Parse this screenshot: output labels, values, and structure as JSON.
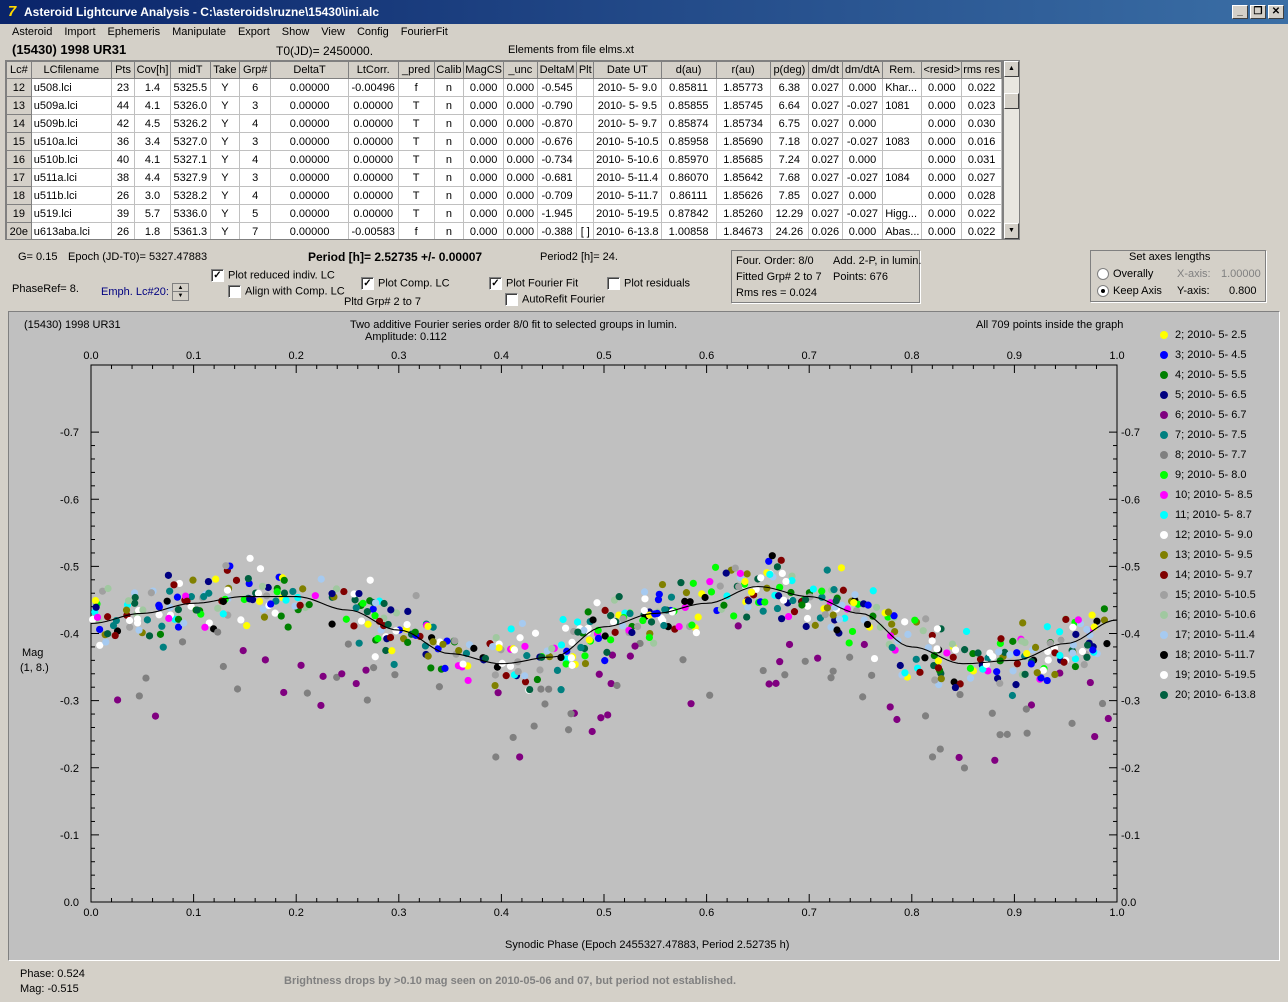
{
  "window": {
    "title": "Asteroid Lightcurve Analysis - C:\\asteroids\\ruzne\\15430\\ini.alc",
    "icon": "app-logo-icon"
  },
  "menu": [
    "Asteroid",
    "Import",
    "Ephemeris",
    "Manipulate",
    "Export",
    "Show",
    "View",
    "Config",
    "FourierFit"
  ],
  "header": {
    "object": "(15430) 1998 UR31",
    "t0": "T0(JD)= 2450000.",
    "elements": "Elements from file elms.xt"
  },
  "table": {
    "columns": [
      "Lc#",
      "LCfilename",
      "Pts",
      "Cov[h]",
      "midT",
      "Take",
      "Grp#",
      "DeltaT",
      "LtCorr.",
      "_pred",
      "Calib",
      "MagCS",
      "_unc",
      "DeltaM",
      "Plt",
      "Date UT",
      "d(au)",
      "r(au)",
      "p(deg)",
      "dm/dt",
      "dm/dtA",
      "Rem.",
      "<resid>",
      "rms res"
    ],
    "rows": [
      [
        "12",
        "u508.lci",
        "23",
        "1.4",
        "5325.5",
        "Y",
        "6",
        "0.00000",
        "-0.00496",
        "f",
        "n",
        "0.000",
        "0.000",
        "-0.545",
        "",
        "2010- 5- 9.0",
        "0.85811",
        "1.85773",
        "6.38",
        "0.027",
        "0.000",
        "Khar...",
        "0.000",
        "0.022"
      ],
      [
        "13",
        "u509a.lci",
        "44",
        "4.1",
        "5326.0",
        "Y",
        "3",
        "0.00000",
        "0.00000",
        "T",
        "n",
        "0.000",
        "0.000",
        "-0.790",
        "",
        "2010- 5- 9.5",
        "0.85855",
        "1.85745",
        "6.64",
        "0.027",
        "-0.027",
        "1081",
        "0.000",
        "0.023"
      ],
      [
        "14",
        "u509b.lci",
        "42",
        "4.5",
        "5326.2",
        "Y",
        "4",
        "0.00000",
        "0.00000",
        "T",
        "n",
        "0.000",
        "0.000",
        "-0.870",
        "",
        "2010- 5- 9.7",
        "0.85874",
        "1.85734",
        "6.75",
        "0.027",
        "0.000",
        "",
        "0.000",
        "0.030"
      ],
      [
        "15",
        "u510a.lci",
        "36",
        "3.4",
        "5327.0",
        "Y",
        "3",
        "0.00000",
        "0.00000",
        "T",
        "n",
        "0.000",
        "0.000",
        "-0.676",
        "",
        "2010- 5-10.5",
        "0.85958",
        "1.85690",
        "7.18",
        "0.027",
        "-0.027",
        "1083",
        "0.000",
        "0.016"
      ],
      [
        "16",
        "u510b.lci",
        "40",
        "4.1",
        "5327.1",
        "Y",
        "4",
        "0.00000",
        "0.00000",
        "T",
        "n",
        "0.000",
        "0.000",
        "-0.734",
        "",
        "2010- 5-10.6",
        "0.85970",
        "1.85685",
        "7.24",
        "0.027",
        "0.000",
        "",
        "0.000",
        "0.031"
      ],
      [
        "17",
        "u511a.lci",
        "38",
        "4.4",
        "5327.9",
        "Y",
        "3",
        "0.00000",
        "0.00000",
        "T",
        "n",
        "0.000",
        "0.000",
        "-0.681",
        "",
        "2010- 5-11.4",
        "0.86070",
        "1.85642",
        "7.68",
        "0.027",
        "-0.027",
        "1084",
        "0.000",
        "0.027"
      ],
      [
        "18",
        "u511b.lci",
        "26",
        "3.0",
        "5328.2",
        "Y",
        "4",
        "0.00000",
        "0.00000",
        "T",
        "n",
        "0.000",
        "0.000",
        "-0.709",
        "",
        "2010- 5-11.7",
        "0.86111",
        "1.85626",
        "7.85",
        "0.027",
        "0.000",
        "",
        "0.000",
        "0.028"
      ],
      [
        "19",
        "u519.lci",
        "39",
        "5.7",
        "5336.0",
        "Y",
        "5",
        "0.00000",
        "0.00000",
        "T",
        "n",
        "0.000",
        "0.000",
        "-1.945",
        "",
        "2010- 5-19.5",
        "0.87842",
        "1.85260",
        "12.29",
        "0.027",
        "-0.027",
        "Higg...",
        "0.000",
        "0.022"
      ],
      [
        "20e",
        "u613aba.lci",
        "26",
        "1.8",
        "5361.3",
        "Y",
        "7",
        "0.00000",
        "-0.00583",
        "f",
        "n",
        "0.000",
        "0.000",
        "-0.388",
        "[ ]",
        "2010- 6-13.8",
        "1.00858",
        "1.84673",
        "24.26",
        "0.026",
        "0.000",
        "Abas...",
        "0.000",
        "0.022"
      ]
    ]
  },
  "params": {
    "g": "G= 0.15",
    "epoch": "Epoch (JD-T0)= 5327.47883",
    "period": "Period [h]= 2.52735 +/- 0.00007",
    "period2": "Period2 [h]= 24.",
    "phaseref": "PhaseRef= 8.",
    "emph": "Emph. Lc#20:",
    "pltd": "Pltd Grp#  2  to  7"
  },
  "checks": {
    "reduced": {
      "label": "Plot reduced indiv. LC",
      "checked": true
    },
    "align": {
      "label": "Align with Comp. LC",
      "checked": false
    },
    "comp": {
      "label": "Plot Comp. LC",
      "checked": true
    },
    "fourier": {
      "label": "Plot Fourier Fit",
      "checked": true
    },
    "resid": {
      "label": "Plot residuals",
      "checked": false
    },
    "autorefit": {
      "label": "AutoRefit Fourier",
      "checked": false
    }
  },
  "fourierbox": {
    "order": "Four. Order:  8/0",
    "add": "Add. 2-P, in lumin.",
    "fitted": "Fitted Grp# 2 to 7",
    "points": "Points: 676",
    "rms": "Rms res     = 0.024"
  },
  "axes": {
    "title": "Set axes lengths",
    "overall": "Overally",
    "keep": "Keep Axis",
    "xaxis_label": "X-axis:",
    "xaxis_val": "1.00000",
    "yaxis_label": "Y-axis:",
    "yaxis_val": "0.800",
    "mode": "keep"
  },
  "plot": {
    "object": "(15430) 1998 UR31",
    "desc": "Two additive Fourier series order 8/0 fit to selected groups in lumin.",
    "amp": "Amplitude: 0.112",
    "inside": "All 709 points inside the graph",
    "ylab1": "Mag",
    "ylab2": "(1, 8.)",
    "xlabel": "Synodic Phase (Epoch 2455327.47883, Period 2.52735 h)"
  },
  "chart_data": {
    "type": "scatter",
    "x_ticks": [
      "0.0",
      "0.1",
      "0.2",
      "0.3",
      "0.4",
      "0.5",
      "0.6",
      "0.7",
      "0.8",
      "0.9",
      "1.0"
    ],
    "y_ticks": [
      "-0.7",
      "-0.6",
      "-0.5",
      "-0.4",
      "-0.3",
      "-0.2",
      "-0.1",
      "0.0"
    ],
    "xlim": [
      0,
      1
    ],
    "ylim": [
      -0.8,
      0.0
    ],
    "y_reversed": true,
    "series": [
      {
        "name": "2; 2010- 5- 2.5",
        "color": "#ffff00"
      },
      {
        "name": "3; 2010- 5- 4.5",
        "color": "#0000ff"
      },
      {
        "name": "4; 2010- 5- 5.5",
        "color": "#008000"
      },
      {
        "name": "5; 2010- 5- 6.5",
        "color": "#000080"
      },
      {
        "name": "6; 2010- 5- 6.7",
        "color": "#800080"
      },
      {
        "name": "7; 2010- 5- 7.5",
        "color": "#008080"
      },
      {
        "name": "8; 2010- 5- 7.7",
        "color": "#808080"
      },
      {
        "name": "9; 2010- 5- 8.0",
        "color": "#00ff00"
      },
      {
        "name": "10; 2010- 5- 8.5",
        "color": "#ff00ff"
      },
      {
        "name": "11; 2010- 5- 8.7",
        "color": "#00ffff"
      },
      {
        "name": "12; 2010- 5- 9.0",
        "color": "#ffffff"
      },
      {
        "name": "13; 2010- 5- 9.5",
        "color": "#808000"
      },
      {
        "name": "14; 2010- 5- 9.7",
        "color": "#800000"
      },
      {
        "name": "15; 2010- 5-10.5",
        "color": "#a0a0a0"
      },
      {
        "name": "16; 2010- 5-10.6",
        "color": "#a0c8a0"
      },
      {
        "name": "17; 2010- 5-11.4",
        "color": "#a6caf0"
      },
      {
        "name": "18; 2010- 5-11.7",
        "color": "#000000"
      },
      {
        "name": "19; 2010- 5-19.5",
        "color": "#ffffff"
      },
      {
        "name": "20; 2010- 6-13.8",
        "color": "#006040"
      }
    ],
    "fit_curve": {
      "x": [
        0,
        0.05,
        0.1,
        0.15,
        0.2,
        0.25,
        0.3,
        0.35,
        0.4,
        0.45,
        0.5,
        0.55,
        0.6,
        0.65,
        0.7,
        0.75,
        0.8,
        0.85,
        0.9,
        0.95,
        1.0
      ],
      "y": [
        -0.415,
        -0.43,
        -0.445,
        -0.455,
        -0.455,
        -0.435,
        -0.405,
        -0.37,
        -0.355,
        -0.365,
        -0.41,
        -0.43,
        -0.445,
        -0.47,
        -0.455,
        -0.43,
        -0.38,
        -0.355,
        -0.36,
        -0.385,
        -0.42
      ]
    },
    "point_count": 709
  },
  "status": {
    "phase": "Phase:  0.524",
    "mag": "Mag:   -0.515",
    "message": "Brightness drops by >0.10 mag seen on 2010-05-06 and 07, but period not established."
  }
}
